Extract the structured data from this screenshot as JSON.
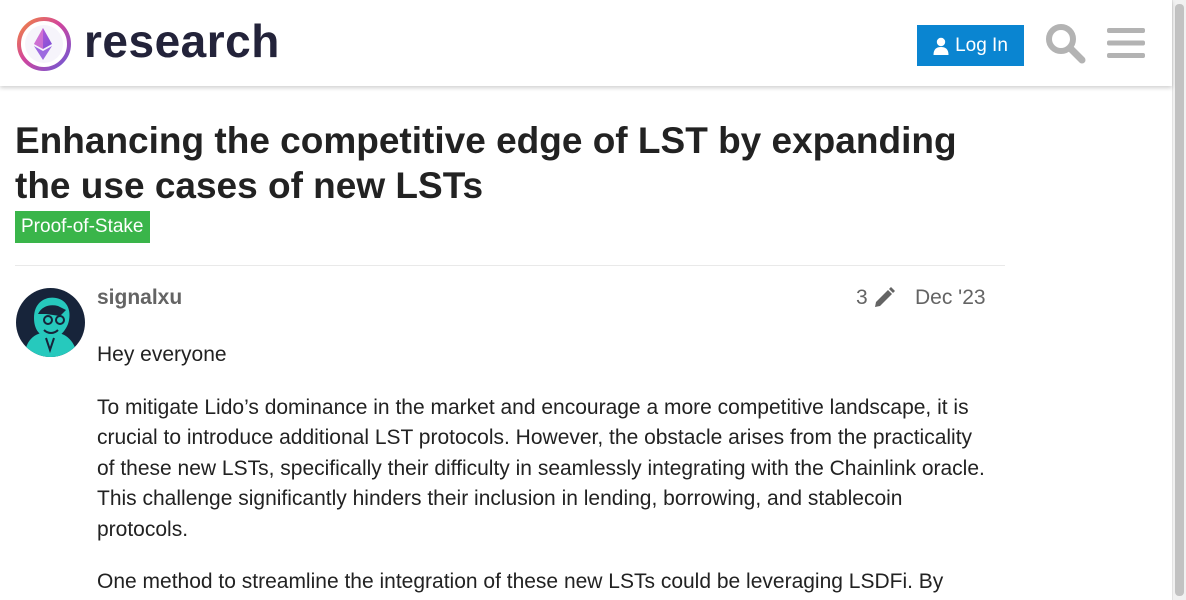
{
  "header": {
    "logo_text": "research",
    "login_label": "Log In",
    "icons": {
      "search": "search-icon",
      "menu": "hamburger-menu-icon",
      "user": "user-icon"
    },
    "colors": {
      "login_button": "#0a85d1",
      "logo_text": "#23233a"
    }
  },
  "topic": {
    "title": "Enhancing the competitive edge of LST by expanding the use cases of new LSTs",
    "category": "Proof-of-Stake",
    "category_color": "#3ab54a"
  },
  "post": {
    "username": "signalxu",
    "edit_count": "3",
    "date": "Dec '23",
    "paragraphs": [
      "Hey everyone",
      "To mitigate Lido’s dominance in the market and encourage a more competitive landscape, it is crucial to introduce additional LST protocols. However, the obstacle arises from the practicality of these new LSTs, specifically their difficulty in seamlessly integrating with the Chainlink oracle. This challenge significantly hinders their inclusion in lending, borrowing, and stablecoin protocols.",
      "One method to streamline the integration of these new LSTs could be leveraging LSDFi. By"
    ]
  }
}
